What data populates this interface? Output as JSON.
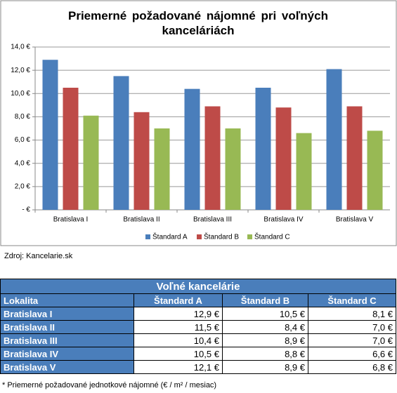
{
  "chart_data": {
    "type": "bar",
    "title": "Priemerné požadované nájomné pri voľných kanceláriách",
    "categories": [
      "Bratislava I",
      "Bratislava II",
      "Bratislava III",
      "Bratislava IV",
      "Bratislava V"
    ],
    "series": [
      {
        "name": "Štandard A",
        "color": "#4a7ebb",
        "values": [
          12.9,
          11.5,
          10.4,
          10.5,
          12.1
        ]
      },
      {
        "name": "Štandard B",
        "color": "#be4b48",
        "values": [
          10.5,
          8.4,
          8.9,
          8.8,
          8.9
        ]
      },
      {
        "name": "Štandard C",
        "color": "#98b954",
        "values": [
          8.1,
          7.0,
          7.0,
          6.6,
          6.8
        ]
      }
    ],
    "ylim": [
      0,
      14
    ],
    "yticks": [
      {
        "value": 0,
        "label": "-  €"
      },
      {
        "value": 2,
        "label": "2,0 €"
      },
      {
        "value": 4,
        "label": "4,0 €"
      },
      {
        "value": 6,
        "label": "6,0 €"
      },
      {
        "value": 8,
        "label": "8,0 €"
      },
      {
        "value": 10,
        "label": "10,0 €"
      },
      {
        "value": 12,
        "label": "12,0 €"
      },
      {
        "value": 14,
        "label": "14,0 €"
      }
    ],
    "grid": true,
    "legend": "bottom"
  },
  "source": "Zdroj: Kancelarie.sk",
  "table": {
    "title": "Voľné kancelárie",
    "header": [
      "Lokalita",
      "Štandard A",
      "Štandard B",
      "Štandard C"
    ],
    "rows": [
      [
        "Bratislava I",
        "12,9 €",
        "10,5 €",
        "8,1 €"
      ],
      [
        "Bratislava II",
        "11,5 €",
        "8,4 €",
        "7,0 €"
      ],
      [
        "Bratislava III",
        "10,4 €",
        "8,9 €",
        "7,0 €"
      ],
      [
        "Bratislava IV",
        "10,5 €",
        "8,8 €",
        "6,6 €"
      ],
      [
        "Bratislava V",
        "12,1 €",
        "8,9 €",
        "6,8 €"
      ]
    ]
  },
  "footnote": "* Priemerné požadované jednotkové nájomné (€ / m² / mesiac)"
}
